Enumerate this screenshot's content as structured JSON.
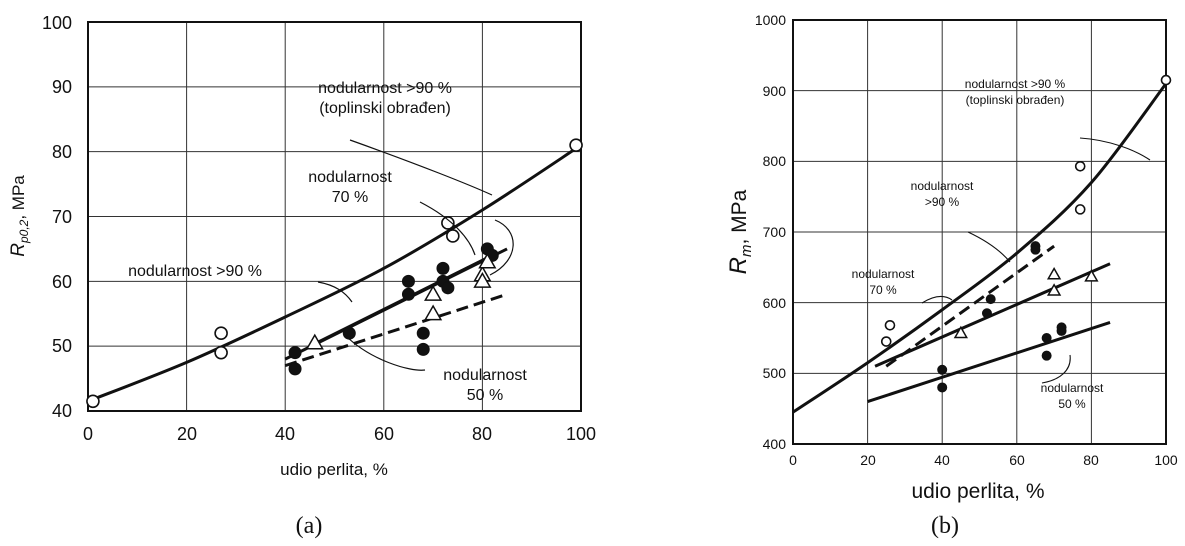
{
  "chart_data": [
    {
      "type": "scatter",
      "panel_label": "(a)",
      "xlabel": "udio perlita, %",
      "ylabel": "R",
      "ylabel_sub": "p0,2",
      "ylabel_unit": ", MPa",
      "xlim": [
        0,
        100
      ],
      "ylim": [
        40,
        100
      ],
      "xticks": [
        "0",
        "20",
        "40",
        "60",
        "80",
        "100"
      ],
      "yticks": [
        "40",
        "50",
        "60",
        "70",
        "80",
        "90",
        "100"
      ],
      "grid": true,
      "annotations": {
        "n90_heat_1": "nodularnost >90 %",
        "n90_heat_2": "(toplinski obrađen)",
        "n70_1": "nodularnost",
        "n70_2": "70 %",
        "n90": "nodularnost >90 %",
        "n50_1": "nodularnost",
        "n50_2": "50 %"
      },
      "lines": [
        {
          "style": "solid",
          "x": [
            0,
            20,
            40,
            60,
            80,
            100
          ],
          "y": [
            41.5,
            47.5,
            54.5,
            62,
            71,
            81
          ]
        },
        {
          "style": "solid",
          "x": [
            40,
            85
          ],
          "y": [
            48,
            65
          ]
        },
        {
          "style": "solid",
          "x": [
            45,
            82
          ],
          "y": [
            50,
            64
          ]
        },
        {
          "style": "dashed",
          "x": [
            40,
            85
          ],
          "y": [
            47,
            58
          ]
        }
      ],
      "points": {
        "open_circles": [
          [
            1,
            41.5
          ],
          [
            27,
            52
          ],
          [
            27,
            49
          ],
          [
            73,
            69
          ],
          [
            74,
            67
          ],
          [
            99,
            81
          ]
        ],
        "filled_circles": [
          [
            42,
            49
          ],
          [
            42,
            46.5
          ],
          [
            53,
            52
          ],
          [
            65,
            60
          ],
          [
            65,
            58
          ],
          [
            68,
            52
          ],
          [
            68,
            49.5
          ],
          [
            72,
            62
          ],
          [
            72,
            60
          ],
          [
            73,
            59
          ],
          [
            81,
            65
          ],
          [
            82,
            64
          ]
        ],
        "open_triangles": [
          [
            46,
            50.5
          ],
          [
            70,
            58
          ],
          [
            70,
            55
          ],
          [
            80,
            61
          ],
          [
            80,
            60
          ],
          [
            81,
            63
          ]
        ]
      }
    },
    {
      "type": "scatter",
      "panel_label": "(b)",
      "xlabel": "udio perlita, %",
      "ylabel": "R",
      "ylabel_sub": "m",
      "ylabel_unit": ", MPa",
      "xlim": [
        0,
        100
      ],
      "ylim": [
        400,
        1000
      ],
      "xticks": [
        "0",
        "20",
        "40",
        "60",
        "80",
        "100"
      ],
      "yticks": [
        "400",
        "500",
        "600",
        "700",
        "800",
        "900",
        "1000"
      ],
      "grid": true,
      "annotations": {
        "n90_heat_1": "nodularnost >90 %",
        "n90_heat_2": "(toplinski obrađen)",
        "n90_1": "nodularnost",
        "n90_2": ">90 %",
        "n70_1": "nodularnost",
        "n70_2": "70 %",
        "n50_1": "nodularnost",
        "n50_2": "50 %"
      },
      "lines": [
        {
          "style": "solid",
          "x": [
            0,
            20,
            40,
            60,
            80,
            100
          ],
          "y": [
            445,
            515,
            590,
            670,
            770,
            910
          ]
        },
        {
          "style": "dashed",
          "x": [
            25,
            70
          ],
          "y": [
            510,
            680
          ]
        },
        {
          "style": "solid",
          "x": [
            22,
            85
          ],
          "y": [
            510,
            655
          ]
        },
        {
          "style": "solid",
          "x": [
            20,
            85
          ],
          "y": [
            460,
            572
          ]
        }
      ],
      "points": {
        "open_circles": [
          [
            25,
            545
          ],
          [
            26,
            568
          ],
          [
            77,
            793
          ],
          [
            77,
            732
          ],
          [
            100,
            915
          ]
        ],
        "filled_circles": [
          [
            40,
            505
          ],
          [
            40,
            480
          ],
          [
            52,
            585
          ],
          [
            53,
            605
          ],
          [
            65,
            680
          ],
          [
            65,
            675
          ],
          [
            68,
            550
          ],
          [
            68,
            525
          ],
          [
            72,
            565
          ],
          [
            72,
            560
          ]
        ],
        "open_triangles": [
          [
            45,
            557
          ],
          [
            70,
            640
          ],
          [
            70,
            617
          ],
          [
            80,
            637
          ]
        ]
      }
    }
  ]
}
